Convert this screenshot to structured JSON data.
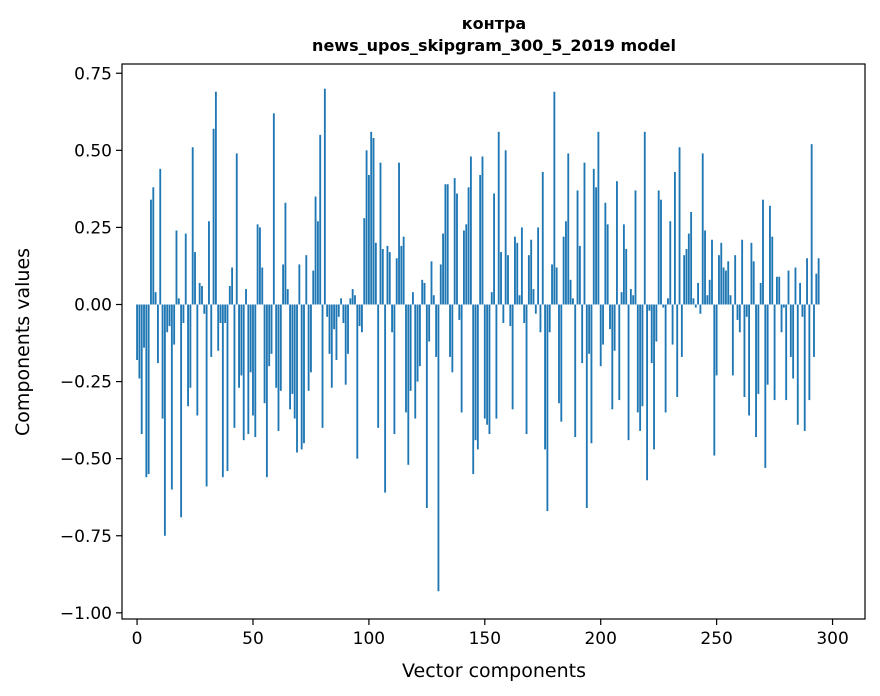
{
  "chart_data": {
    "type": "bar",
    "title_line1": "контра",
    "title_line2": "news_upos_skipgram_300_5_2019 model",
    "xlabel": "Vector components",
    "ylabel": "Components values",
    "xlim": [
      -6.5,
      314
    ],
    "ylim": [
      -1.02,
      0.78
    ],
    "xticks": [
      0,
      50,
      100,
      150,
      200,
      250,
      300
    ],
    "xtick_labels": [
      "0",
      "50",
      "100",
      "150",
      "200",
      "250",
      "300"
    ],
    "yticks": [
      0.75,
      0.5,
      0.25,
      0.0,
      -0.25,
      -0.5,
      -0.75,
      -1.0
    ],
    "ytick_labels": [
      "0.75",
      "0.50",
      "0.25",
      "0.00",
      "−0.25",
      "−0.50",
      "−0.75",
      "−1.00"
    ],
    "bar_color": "#1f77b4",
    "values": [
      -0.18,
      -0.24,
      -0.42,
      -0.14,
      -0.56,
      -0.55,
      0.34,
      0.38,
      0.04,
      -0.19,
      0.44,
      -0.37,
      -0.75,
      -0.09,
      -0.07,
      -0.6,
      -0.13,
      0.24,
      0.02,
      -0.69,
      -0.06,
      0.23,
      -0.33,
      -0.27,
      0.51,
      0.17,
      -0.36,
      0.07,
      0.06,
      -0.03,
      -0.59,
      0.27,
      -0.17,
      0.57,
      0.69,
      -0.15,
      -0.06,
      -0.56,
      -0.06,
      -0.54,
      0.06,
      0.12,
      -0.4,
      0.49,
      -0.27,
      -0.23,
      -0.44,
      0.05,
      -0.42,
      -0.22,
      -0.36,
      -0.43,
      0.26,
      0.25,
      0.12,
      -0.32,
      -0.56,
      -0.2,
      -0.16,
      0.62,
      -0.27,
      -0.41,
      -0.28,
      0.13,
      0.33,
      0.05,
      -0.34,
      -0.29,
      -0.37,
      -0.48,
      0.13,
      -0.47,
      -0.45,
      0.16,
      -0.28,
      -0.22,
      0.11,
      0.35,
      0.27,
      0.55,
      -0.4,
      0.7,
      -0.04,
      -0.16,
      -0.27,
      -0.08,
      -0.18,
      -0.04,
      0.02,
      -0.06,
      -0.26,
      -0.16,
      0.02,
      0.05,
      0.03,
      -0.5,
      -0.07,
      -0.09,
      0.28,
      0.5,
      0.42,
      0.56,
      0.54,
      0.2,
      -0.4,
      0.46,
      0.18,
      -0.61,
      0.19,
      0.17,
      -0.09,
      -0.42,
      0.15,
      0.46,
      0.19,
      0.22,
      -0.35,
      -0.52,
      -0.28,
      0.04,
      -0.37,
      -0.25,
      -0.2,
      0.08,
      0.07,
      -0.66,
      -0.12,
      0.14,
      0.03,
      -0.17,
      -0.93,
      0.13,
      0.23,
      0.39,
      0.39,
      -0.17,
      -0.22,
      0.41,
      0.36,
      -0.05,
      -0.35,
      0.24,
      0.26,
      0.38,
      0.48,
      -0.55,
      -0.44,
      -0.47,
      0.42,
      0.48,
      -0.37,
      -0.39,
      -0.42,
      0.04,
      0.36,
      -0.37,
      0.56,
      0.17,
      -0.06,
      0.5,
      0.16,
      -0.07,
      -0.34,
      0.22,
      0.2,
      0.03,
      0.25,
      -0.06,
      -0.42,
      0.16,
      0.21,
      0.05,
      -0.03,
      0.25,
      -0.09,
      0.43,
      -0.47,
      -0.67,
      -0.09,
      0.13,
      0.69,
      0.12,
      -0.32,
      -0.38,
      0.22,
      0.27,
      0.49,
      0.08,
      0.02,
      -0.43,
      0.37,
      0.19,
      -0.19,
      0.46,
      -0.66,
      -0.16,
      -0.45,
      0.44,
      0.38,
      0.56,
      -0.2,
      -0.13,
      0.33,
      0.26,
      -0.08,
      -0.34,
      -0.15,
      0.4,
      -0.31,
      0.04,
      0.26,
      0.18,
      -0.44,
      0.05,
      0.03,
      0.37,
      -0.35,
      -0.41,
      -0.33,
      0.56,
      -0.57,
      -0.02,
      -0.19,
      -0.47,
      -0.12,
      0.37,
      0.34,
      -0.01,
      -0.35,
      0.02,
      0.27,
      -0.13,
      0.43,
      -0.3,
      0.51,
      -0.17,
      0.16,
      0.18,
      0.23,
      0.3,
      0.02,
      -0.01,
      0.07,
      -0.03,
      0.49,
      0.24,
      0.03,
      0.08,
      0.21,
      -0.49,
      -0.23,
      0.16,
      0.2,
      0.12,
      0.11,
      0.14,
      0.03,
      -0.23,
      0.16,
      -0.05,
      -0.09,
      0.21,
      -0.3,
      -0.04,
      -0.36,
      0.2,
      0.14,
      -0.43,
      -0.29,
      0.07,
      0.34,
      -0.53,
      -0.26,
      0.32,
      0.22,
      -0.31,
      0.09,
      0.09,
      -0.09,
      -0.01,
      -0.31,
      0.11,
      -0.17,
      -0.24,
      0.12,
      -0.39,
      0.07,
      -0.04,
      -0.41,
      0.15,
      -0.31,
      0.52,
      -0.17,
      0.1,
      0.15
    ]
  }
}
